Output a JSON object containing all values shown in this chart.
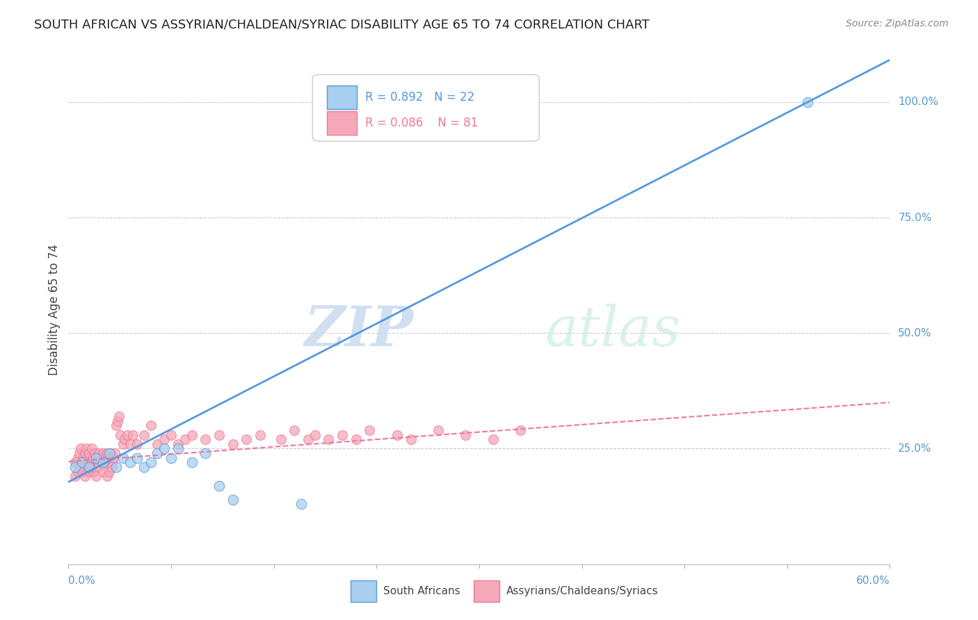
{
  "title": "SOUTH AFRICAN VS ASSYRIAN/CHALDEAN/SYRIAC DISABILITY AGE 65 TO 74 CORRELATION CHART",
  "source": "Source: ZipAtlas.com",
  "ylabel": "Disability Age 65 to 74",
  "xlim": [
    0.0,
    0.6
  ],
  "ylim": [
    0.0,
    1.1
  ],
  "blue_R": 0.892,
  "blue_N": 22,
  "pink_R": 0.086,
  "pink_N": 81,
  "blue_color": "#A8CFEE",
  "pink_color": "#F5A8B8",
  "blue_line_color": "#5599DD",
  "pink_line_color": "#EE7799",
  "watermark_zip": "ZIP",
  "watermark_atlas": "atlas",
  "legend_label_blue": "South Africans",
  "legend_label_pink": "Assyrians/Chaldeans/Syriacs",
  "blue_x": [
    0.005,
    0.01,
    0.015,
    0.02,
    0.025,
    0.03,
    0.035,
    0.04,
    0.045,
    0.05,
    0.055,
    0.06,
    0.065,
    0.07,
    0.075,
    0.08,
    0.09,
    0.1,
    0.11,
    0.12,
    0.17,
    0.54
  ],
  "blue_y": [
    0.21,
    0.22,
    0.21,
    0.23,
    0.22,
    0.24,
    0.21,
    0.23,
    0.22,
    0.23,
    0.21,
    0.22,
    0.24,
    0.25,
    0.23,
    0.25,
    0.22,
    0.24,
    0.17,
    0.14,
    0.13,
    1.0
  ],
  "pink_x": [
    0.005,
    0.007,
    0.008,
    0.009,
    0.01,
    0.011,
    0.012,
    0.013,
    0.014,
    0.015,
    0.016,
    0.017,
    0.018,
    0.019,
    0.02,
    0.021,
    0.022,
    0.023,
    0.024,
    0.025,
    0.026,
    0.027,
    0.028,
    0.029,
    0.03,
    0.031,
    0.032,
    0.033,
    0.034,
    0.035,
    0.036,
    0.037,
    0.038,
    0.04,
    0.041,
    0.043,
    0.045,
    0.047,
    0.05,
    0.055,
    0.06,
    0.065,
    0.07,
    0.075,
    0.08,
    0.085,
    0.09,
    0.1,
    0.11,
    0.12,
    0.13,
    0.14,
    0.155,
    0.165,
    0.175,
    0.18,
    0.19,
    0.2,
    0.21,
    0.22,
    0.24,
    0.25,
    0.27,
    0.29,
    0.31,
    0.33,
    0.005,
    0.007,
    0.008,
    0.01,
    0.012,
    0.014,
    0.015,
    0.016,
    0.018,
    0.02,
    0.022,
    0.025,
    0.028,
    0.03,
    0.032
  ],
  "pink_y": [
    0.22,
    0.23,
    0.24,
    0.25,
    0.22,
    0.23,
    0.24,
    0.25,
    0.23,
    0.24,
    0.22,
    0.25,
    0.23,
    0.24,
    0.22,
    0.23,
    0.24,
    0.22,
    0.23,
    0.24,
    0.22,
    0.23,
    0.24,
    0.22,
    0.23,
    0.24,
    0.22,
    0.23,
    0.24,
    0.3,
    0.31,
    0.32,
    0.28,
    0.26,
    0.27,
    0.28,
    0.26,
    0.28,
    0.26,
    0.28,
    0.3,
    0.26,
    0.27,
    0.28,
    0.26,
    0.27,
    0.28,
    0.27,
    0.28,
    0.26,
    0.27,
    0.28,
    0.27,
    0.29,
    0.27,
    0.28,
    0.27,
    0.28,
    0.27,
    0.29,
    0.28,
    0.27,
    0.29,
    0.28,
    0.27,
    0.29,
    0.19,
    0.2,
    0.21,
    0.2,
    0.19,
    0.21,
    0.2,
    0.21,
    0.2,
    0.19,
    0.21,
    0.2,
    0.19,
    0.2,
    0.21
  ],
  "blue_line_x0": 0.0,
  "blue_line_y0": 0.178,
  "blue_line_x1": 0.54,
  "blue_line_y1": 1.0,
  "pink_line_x0": 0.0,
  "pink_line_y0": 0.222,
  "pink_line_x1": 0.6,
  "pink_line_y1": 0.35
}
